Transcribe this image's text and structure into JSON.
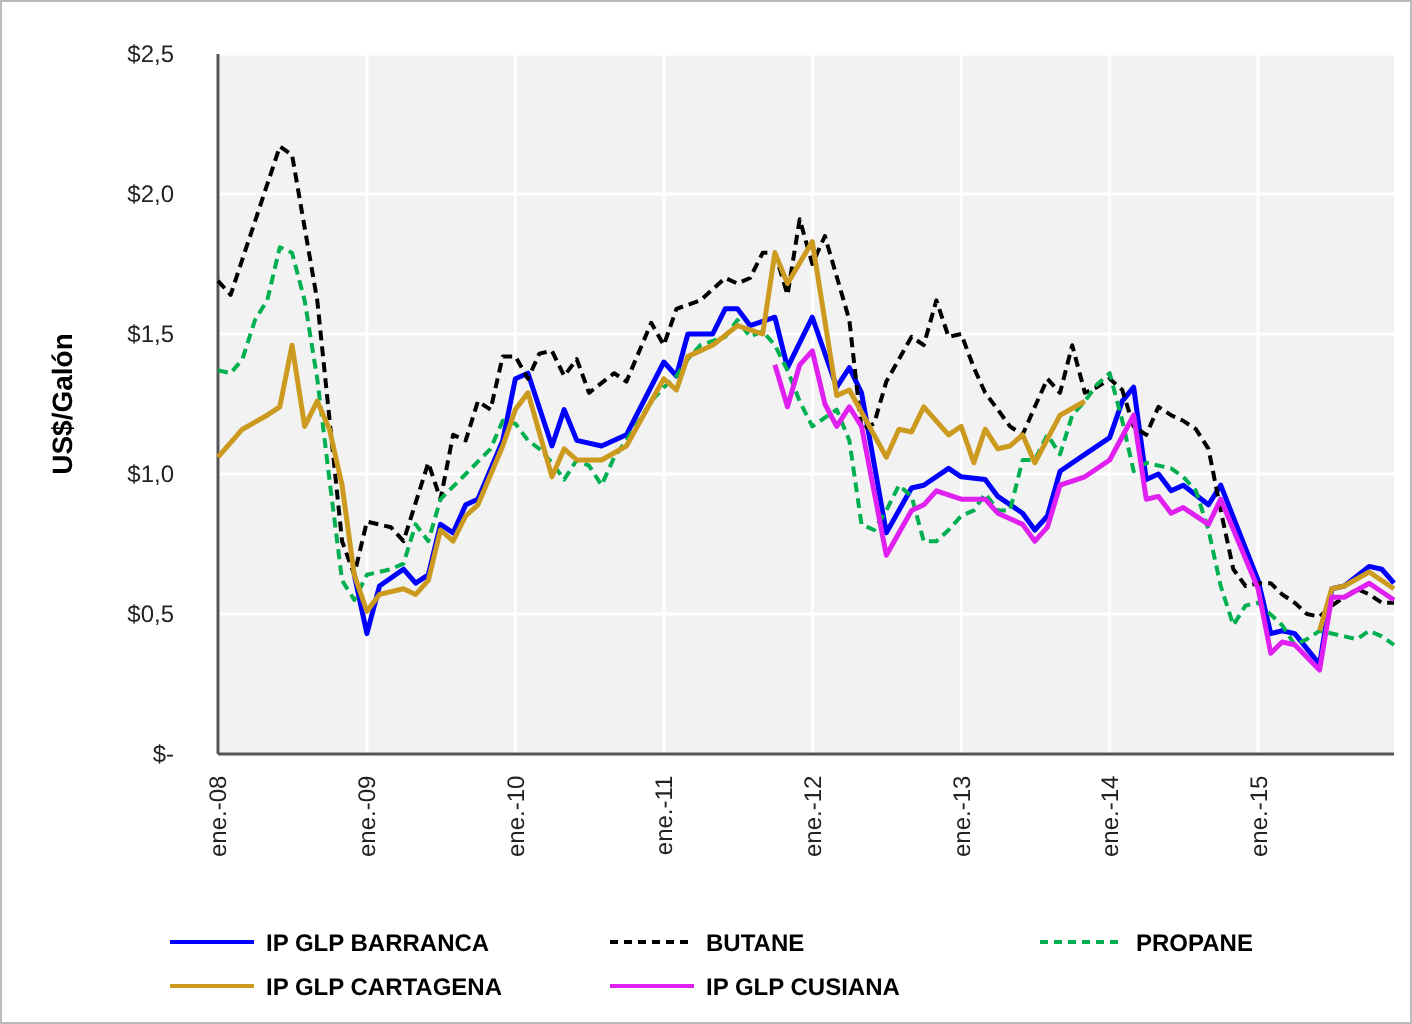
{
  "chart_data": {
    "type": "line",
    "ylabel": "US$/Galón",
    "xlim": [
      "2008-01",
      "2015-12"
    ],
    "xticks": [
      {
        "value": "2008-01",
        "label": "ene.-08"
      },
      {
        "value": "2009-01",
        "label": "ene.-09"
      },
      {
        "value": "2010-01",
        "label": "ene.-10"
      },
      {
        "value": "2011-01",
        "label": "ene.-11"
      },
      {
        "value": "2012-01",
        "label": "ene.-12"
      },
      {
        "value": "2013-01",
        "label": "ene.-13"
      },
      {
        "value": "2014-01",
        "label": "ene.-14"
      },
      {
        "value": "2015-01",
        "label": "ene.-15"
      }
    ],
    "ylim": [
      0,
      2.5
    ],
    "yticks": [
      {
        "value": 0,
        "label": "$-"
      },
      {
        "value": 0.5,
        "label": "$0,5"
      },
      {
        "value": 1,
        "label": "$1,0"
      },
      {
        "value": 1.5,
        "label": "$1,5"
      },
      {
        "value": 2,
        "label": "$2,0"
      },
      {
        "value": 2.5,
        "label": "$2,5"
      }
    ],
    "grid": true,
    "legend": "bottom",
    "marker": "none",
    "series": [
      {
        "name": "IP GLP BARRANCA",
        "color": "#0000ff",
        "line_style": "solid",
        "x": [
          "2008-12",
          "2009-01",
          "2009-02",
          "2009-04",
          "2009-05",
          "2009-06",
          "2009-07",
          "2009-08",
          "2009-09",
          "2009-10",
          "2009-12",
          "2010-01",
          "2010-02",
          "2010-04",
          "2010-05",
          "2010-06",
          "2010-08",
          "2010-10",
          "2011-01",
          "2011-02",
          "2011-03",
          "2011-05",
          "2011-06",
          "2011-07",
          "2011-08",
          "2011-10",
          "2011-11",
          "2012-01",
          "2012-03",
          "2012-04",
          "2012-05",
          "2012-07",
          "2012-09",
          "2012-10",
          "2012-12",
          "2013-01",
          "2013-03",
          "2013-04",
          "2013-06",
          "2013-07",
          "2013-08",
          "2013-09",
          "2013-11",
          "2014-01",
          "2014-02",
          "2014-03",
          "2014-04",
          "2014-05",
          "2014-06",
          "2014-07",
          "2014-09",
          "2014-10",
          "2015-01",
          "2015-02",
          "2015-03",
          "2015-04",
          "2015-06",
          "2015-07",
          "2015-08",
          "2015-10",
          "2015-11",
          "2015-12"
        ],
        "values": [
          0.64,
          0.43,
          0.6,
          0.66,
          0.61,
          0.64,
          0.82,
          0.79,
          0.89,
          0.91,
          1.12,
          1.34,
          1.36,
          1.1,
          1.23,
          1.12,
          1.1,
          1.14,
          1.4,
          1.35,
          1.5,
          1.5,
          1.59,
          1.59,
          1.53,
          1.56,
          1.38,
          1.56,
          1.31,
          1.38,
          1.29,
          0.79,
          0.95,
          0.96,
          1.02,
          0.99,
          0.98,
          0.92,
          0.86,
          0.8,
          0.85,
          1.01,
          1.07,
          1.13,
          1.26,
          1.31,
          0.98,
          1.0,
          0.94,
          0.96,
          0.89,
          0.96,
          0.62,
          0.43,
          0.44,
          0.43,
          0.32,
          0.59,
          0.6,
          0.67,
          0.66,
          0.61
        ]
      },
      {
        "name": "BUTANE",
        "color": "#000000",
        "line_style": "dashed",
        "x": [
          "2008-01",
          "2008-02",
          "2008-06",
          "2008-07",
          "2008-09",
          "2008-11",
          "2008-12",
          "2009-01",
          "2009-03",
          "2009-04",
          "2009-06",
          "2009-07",
          "2009-08",
          "2009-09",
          "2009-10",
          "2009-11",
          "2009-12",
          "2010-01",
          "2010-02",
          "2010-03",
          "2010-04",
          "2010-05",
          "2010-06",
          "2010-07",
          "2010-09",
          "2010-10",
          "2010-12",
          "2011-01",
          "2011-02",
          "2011-04",
          "2011-06",
          "2011-07",
          "2011-08",
          "2011-09",
          "2011-10",
          "2011-11",
          "2011-12",
          "2012-01",
          "2012-02",
          "2012-04",
          "2012-05",
          "2012-06",
          "2012-07",
          "2012-09",
          "2012-10",
          "2012-11",
          "2012-12",
          "2013-01",
          "2013-02",
          "2013-03",
          "2013-04",
          "2013-05",
          "2013-06",
          "2013-07",
          "2013-08",
          "2013-09",
          "2013-10",
          "2013-11",
          "2013-12",
          "2014-01",
          "2014-02",
          "2014-03",
          "2014-04",
          "2014-05",
          "2014-06",
          "2014-07",
          "2014-08",
          "2014-09",
          "2014-10",
          "2014-11",
          "2014-12",
          "2015-01",
          "2015-02",
          "2015-03",
          "2015-04",
          "2015-05",
          "2015-06",
          "2015-07",
          "2015-08",
          "2015-09",
          "2015-10",
          "2015-11",
          "2015-12"
        ],
        "values": [
          1.69,
          1.64,
          2.17,
          2.14,
          1.62,
          0.76,
          0.64,
          0.83,
          0.81,
          0.76,
          1.04,
          0.91,
          1.14,
          1.12,
          1.26,
          1.23,
          1.42,
          1.42,
          1.34,
          1.43,
          1.44,
          1.35,
          1.41,
          1.29,
          1.36,
          1.33,
          1.54,
          1.46,
          1.59,
          1.62,
          1.7,
          1.68,
          1.7,
          1.79,
          1.79,
          1.64,
          1.91,
          1.75,
          1.85,
          1.55,
          1.16,
          1.18,
          1.33,
          1.49,
          1.46,
          1.62,
          1.49,
          1.5,
          1.38,
          1.29,
          1.23,
          1.17,
          1.14,
          1.24,
          1.34,
          1.29,
          1.46,
          1.29,
          1.31,
          1.34,
          1.3,
          1.17,
          1.14,
          1.24,
          1.21,
          1.19,
          1.16,
          1.09,
          0.87,
          0.66,
          0.6,
          0.61,
          0.61,
          0.57,
          0.54,
          0.5,
          0.49,
          0.53,
          0.56,
          0.59,
          0.57,
          0.54,
          0.54
        ]
      },
      {
        "name": "PROPANE",
        "color": "#00b050",
        "line_style": "dashed",
        "x": [
          "2008-01",
          "2008-02",
          "2008-03",
          "2008-04",
          "2008-05",
          "2008-06",
          "2008-07",
          "2008-08",
          "2008-09",
          "2008-10",
          "2008-11",
          "2008-12",
          "2009-01",
          "2009-03",
          "2009-04",
          "2009-05",
          "2009-06",
          "2009-07",
          "2009-09",
          "2009-11",
          "2009-12",
          "2010-01",
          "2010-02",
          "2010-03",
          "2010-04",
          "2010-05",
          "2010-06",
          "2010-07",
          "2010-08",
          "2010-09",
          "2010-10",
          "2010-11",
          "2010-12",
          "2011-01",
          "2011-02",
          "2011-03",
          "2011-04",
          "2011-06",
          "2011-07",
          "2011-08",
          "2011-09",
          "2011-10",
          "2011-11",
          "2011-12",
          "2012-01",
          "2012-03",
          "2012-04",
          "2012-05",
          "2012-06",
          "2012-07",
          "2012-08",
          "2012-09",
          "2012-10",
          "2012-11",
          "2012-12",
          "2013-01",
          "2013-02",
          "2013-03",
          "2013-04",
          "2013-05",
          "2013-06",
          "2013-07",
          "2013-08",
          "2013-09",
          "2013-10",
          "2013-11",
          "2013-12",
          "2014-01",
          "2014-02",
          "2014-03",
          "2014-04",
          "2014-06",
          "2014-07",
          "2014-08",
          "2014-09",
          "2014-10",
          "2014-11",
          "2014-12",
          "2015-01",
          "2015-03",
          "2015-04",
          "2015-05",
          "2015-06",
          "2015-08",
          "2015-09",
          "2015-10",
          "2015-11",
          "2015-12"
        ],
        "values": [
          1.37,
          1.36,
          1.41,
          1.55,
          1.62,
          1.81,
          1.79,
          1.62,
          1.34,
          0.98,
          0.62,
          0.55,
          0.64,
          0.66,
          0.68,
          0.82,
          0.76,
          0.91,
          1.0,
          1.09,
          1.19,
          1.18,
          1.12,
          1.09,
          1.04,
          0.98,
          1.05,
          1.03,
          0.96,
          1.06,
          1.12,
          1.19,
          1.26,
          1.31,
          1.35,
          1.41,
          1.46,
          1.49,
          1.55,
          1.49,
          1.51,
          1.46,
          1.37,
          1.26,
          1.17,
          1.23,
          1.12,
          0.82,
          0.8,
          0.87,
          0.96,
          0.92,
          0.76,
          0.76,
          0.8,
          0.85,
          0.87,
          0.93,
          0.87,
          0.87,
          1.05,
          1.05,
          1.14,
          1.07,
          1.21,
          1.26,
          1.32,
          1.36,
          1.19,
          1.01,
          1.04,
          1.02,
          0.99,
          0.94,
          0.8,
          0.6,
          0.46,
          0.53,
          0.54,
          0.46,
          0.39,
          0.41,
          0.44,
          0.42,
          0.41,
          0.44,
          0.42,
          0.39
        ]
      },
      {
        "name": "IP GLP CARTAGENA",
        "color": "#cc9a1f",
        "line_style": "solid",
        "x": [
          "2008-01",
          "2008-03",
          "2008-05",
          "2008-06",
          "2008-07",
          "2008-08",
          "2008-09",
          "2008-10",
          "2008-11",
          "2008-12",
          "2009-01",
          "2009-02",
          "2009-04",
          "2009-05",
          "2009-06",
          "2009-07",
          "2009-08",
          "2009-09",
          "2009-10",
          "2009-12",
          "2010-01",
          "2010-02",
          "2010-04",
          "2010-05",
          "2010-06",
          "2010-08",
          "2010-10",
          "2011-01",
          "2011-02",
          "2011-03",
          "2011-05",
          "2011-07",
          "2011-09",
          "2011-10",
          "2011-11",
          "2012-01",
          "2012-03",
          "2012-04",
          "2012-07",
          "2012-08",
          "2012-09",
          "2012-10",
          "2012-12",
          "2013-01",
          "2013-02",
          "2013-03",
          "2013-04",
          "2013-05",
          "2013-06",
          "2013-07",
          "2013-09",
          "2013-11",
          "2014-06",
          "2015-06",
          "2015-07",
          "2015-08",
          "2015-10",
          "2015-12"
        ],
        "values": [
          1.06,
          1.16,
          1.21,
          1.24,
          1.46,
          1.17,
          1.26,
          1.16,
          0.96,
          0.64,
          0.51,
          0.57,
          0.59,
          0.57,
          0.62,
          0.8,
          0.76,
          0.85,
          0.89,
          1.1,
          1.23,
          1.29,
          0.99,
          1.09,
          1.05,
          1.05,
          1.1,
          1.34,
          1.3,
          1.42,
          1.46,
          1.53,
          1.5,
          1.79,
          1.68,
          1.83,
          1.28,
          1.3,
          1.06,
          1.16,
          1.15,
          1.24,
          1.14,
          1.17,
          1.04,
          1.16,
          1.09,
          1.1,
          1.14,
          1.04,
          1.21,
          1.26,
          null,
          0.44,
          0.59,
          0.6,
          0.65,
          0.59
        ]
      },
      {
        "name": "IP GLP CUSIANA",
        "color": "#e020f0",
        "line_style": "solid",
        "x": [
          "2011-10",
          "2011-11",
          "2011-12",
          "2012-01",
          "2012-02",
          "2012-03",
          "2012-04",
          "2012-05",
          "2012-07",
          "2012-09",
          "2012-10",
          "2012-11",
          "2013-01",
          "2013-03",
          "2013-04",
          "2013-06",
          "2013-07",
          "2013-08",
          "2013-09",
          "2013-11",
          "2014-01",
          "2014-03",
          "2014-04",
          "2014-05",
          "2014-06",
          "2014-07",
          "2014-09",
          "2014-10",
          "2015-01",
          "2015-02",
          "2015-03",
          "2015-04",
          "2015-06",
          "2015-07",
          "2015-08",
          "2015-10",
          "2015-12"
        ],
        "values": [
          1.39,
          1.24,
          1.39,
          1.44,
          1.25,
          1.17,
          1.24,
          1.17,
          0.71,
          0.87,
          0.89,
          0.94,
          0.91,
          0.91,
          0.86,
          0.82,
          0.76,
          0.81,
          0.96,
          0.99,
          1.05,
          1.21,
          0.91,
          0.92,
          0.86,
          0.88,
          0.82,
          0.91,
          0.59,
          0.36,
          0.4,
          0.39,
          0.3,
          0.56,
          0.56,
          0.61,
          0.55
        ]
      }
    ]
  }
}
